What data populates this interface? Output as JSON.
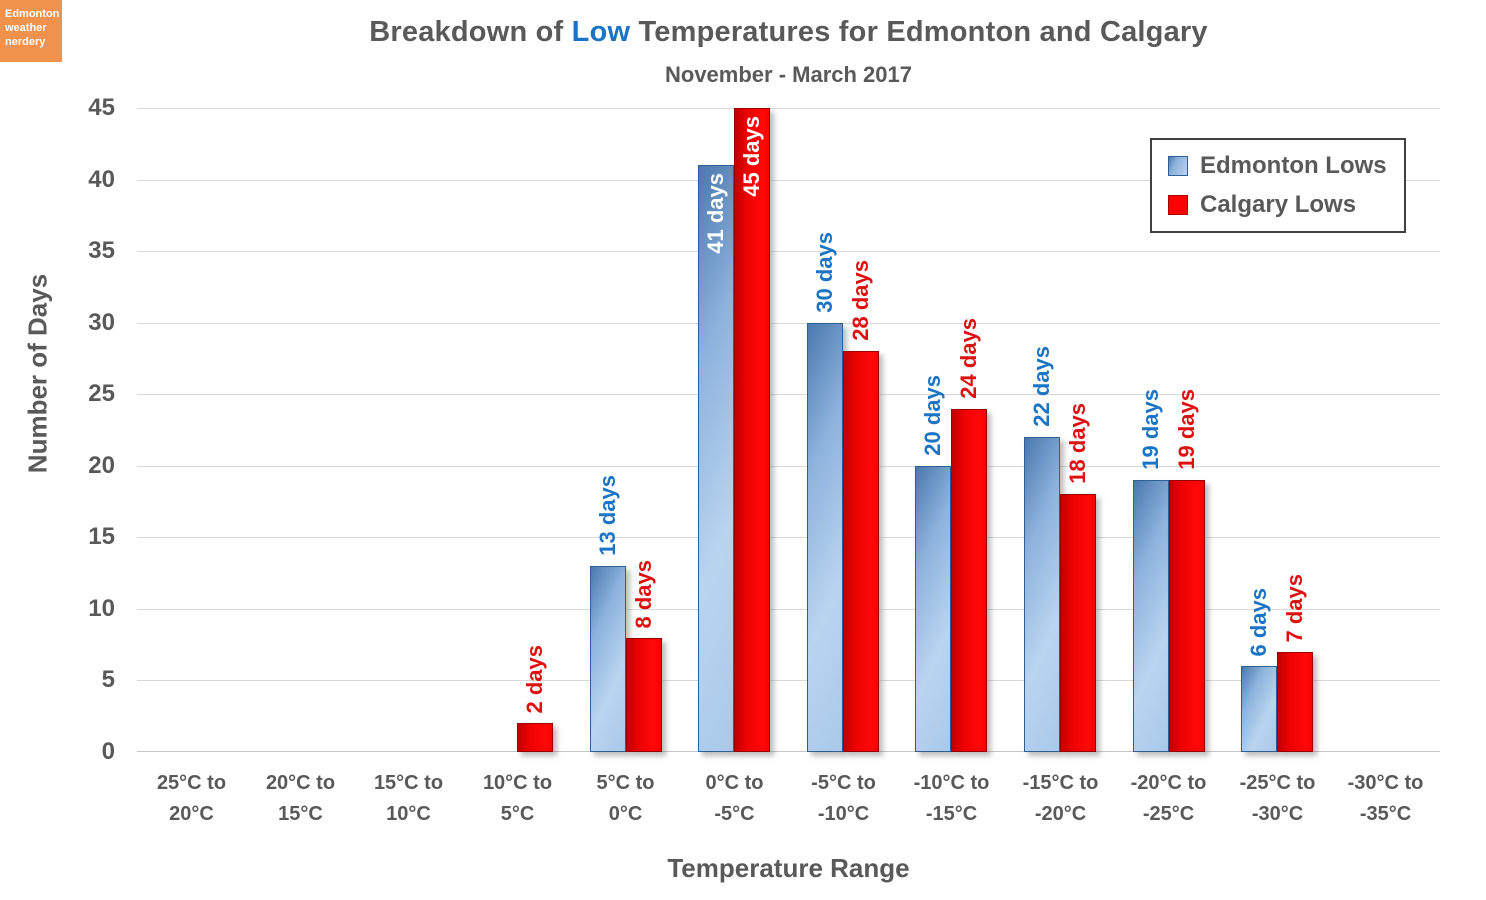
{
  "logo": {
    "line1": "Edmonton",
    "line2": "weather",
    "line3": "nerdery"
  },
  "title": {
    "part1": "Breakdown of ",
    "part2": "Low",
    "part3": " Temperatures for Edmonton and Calgary"
  },
  "colors": {
    "text_gray": "#595959",
    "accent_blue": "#1B74C4",
    "accent_red": "#DD1210",
    "edmonton_bar": "#9DC3E6",
    "calgary_bar": "#FF0000",
    "gridline": "#D9D9D9",
    "logo_orange": "#F0924C"
  },
  "chart_data": {
    "type": "bar",
    "title": "Breakdown of Low Temperatures for Edmonton and Calgary",
    "subtitle": "November - March 2017",
    "xlabel": "Temperature Range",
    "ylabel": "Number of Days",
    "ylim": [
      0,
      45
    ],
    "ytick_step": 5,
    "grid": true,
    "legend_position": "top-right",
    "categories": [
      [
        "25°C to",
        "20°C"
      ],
      [
        "20°C to",
        "15°C"
      ],
      [
        "15°C to",
        "10°C"
      ],
      [
        "10°C to",
        "5°C"
      ],
      [
        "5°C to",
        "0°C"
      ],
      [
        "0°C to",
        "-5°C"
      ],
      [
        "-5°C to",
        "-10°C"
      ],
      [
        "-10°C to",
        "-15°C"
      ],
      [
        "-15°C to",
        "-20°C"
      ],
      [
        "-20°C to",
        "-25°C"
      ],
      [
        "-25°C to",
        "-30°C"
      ],
      [
        "-30°C to",
        "-35°C"
      ]
    ],
    "series": [
      {
        "name": "Edmonton Lows",
        "values": [
          0,
          0,
          0,
          0,
          13,
          41,
          30,
          20,
          22,
          19,
          6,
          0
        ],
        "labels": [
          "",
          "",
          "",
          "",
          "13 days",
          "41 days",
          "30 days",
          "20 days",
          "22 days",
          "19 days",
          "6 days",
          ""
        ]
      },
      {
        "name": "Calgary Lows",
        "values": [
          0,
          0,
          0,
          2,
          8,
          45,
          28,
          24,
          18,
          19,
          7,
          0
        ],
        "labels": [
          "",
          "",
          "",
          "2 days",
          "8 days",
          "45 days",
          "28 days",
          "24 days",
          "18 days",
          "19 days",
          "7 days",
          ""
        ]
      }
    ]
  }
}
